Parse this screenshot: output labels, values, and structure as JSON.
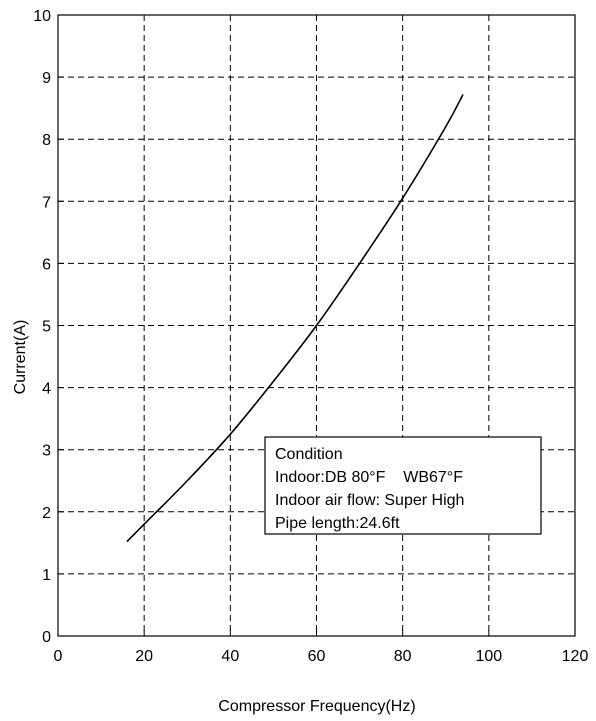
{
  "chart_data": {
    "type": "line",
    "xlabel": "Compressor Frequency(Hz)",
    "ylabel": "Current(A)",
    "xlim": [
      0,
      120
    ],
    "ylim": [
      0,
      10
    ],
    "xticks": [
      0,
      20,
      40,
      60,
      80,
      100,
      120
    ],
    "yticks": [
      0,
      1,
      2,
      3,
      4,
      5,
      6,
      7,
      8,
      9,
      10
    ],
    "grid": true,
    "grid_style": "dashed",
    "series": [
      {
        "name": "",
        "x": [
          16,
          20,
          30,
          40,
          50,
          60,
          70,
          80,
          90,
          94
        ],
        "y": [
          1.52,
          1.8,
          2.5,
          3.25,
          4.1,
          5.0,
          6.0,
          7.05,
          8.2,
          8.72
        ]
      }
    ],
    "annotation": {
      "lines": [
        "Condition",
        "Indoor:DB 80°F    WB67°F",
        "Indoor air flow: Super High",
        "Pipe length:24.6ft"
      ]
    }
  },
  "colors": {
    "line": "#000000",
    "grid": "#000000",
    "background": "#ffffff"
  }
}
